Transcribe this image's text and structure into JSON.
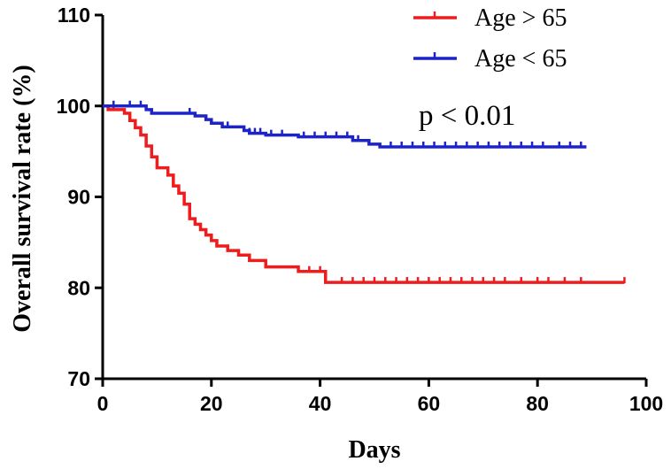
{
  "chart_data": {
    "type": "line",
    "subtype": "kaplan-meier",
    "xlabel": "Days",
    "ylabel": "Overall survival rate (%)",
    "xlim": [
      0,
      100
    ],
    "ylim": [
      70,
      110
    ],
    "xticks": [
      0,
      20,
      40,
      60,
      80,
      100
    ],
    "yticks": [
      70,
      80,
      90,
      100,
      110
    ],
    "grid": false,
    "legend_position": "top-right",
    "annotation": "p < 0.01",
    "series": [
      {
        "name": "Age > 65",
        "color": "#ee1c1c",
        "steps": [
          [
            0,
            100
          ],
          [
            1,
            99.6
          ],
          [
            4,
            99.2
          ],
          [
            5,
            98.4
          ],
          [
            6,
            97.6
          ],
          [
            7,
            96.8
          ],
          [
            8,
            95.6
          ],
          [
            9,
            94.4
          ],
          [
            10,
            93.2
          ],
          [
            12,
            92.4
          ],
          [
            13,
            91.2
          ],
          [
            14,
            90.4
          ],
          [
            15,
            89.2
          ],
          [
            16,
            87.6
          ],
          [
            17,
            87.0
          ],
          [
            18,
            86.4
          ],
          [
            19,
            85.8
          ],
          [
            20,
            85.2
          ],
          [
            21,
            84.6
          ],
          [
            23,
            84.1
          ],
          [
            25,
            83.6
          ],
          [
            27,
            83.0
          ],
          [
            30,
            82.3
          ],
          [
            36,
            81.8
          ],
          [
            41,
            80.6
          ],
          [
            96,
            80.6
          ]
        ],
        "censored": [
          [
            2,
            99.6
          ],
          [
            38,
            81.8
          ],
          [
            40,
            81.8
          ],
          [
            44,
            80.6
          ],
          [
            46,
            80.6
          ],
          [
            48,
            80.6
          ],
          [
            50,
            80.6
          ],
          [
            52,
            80.6
          ],
          [
            54,
            80.6
          ],
          [
            56,
            80.6
          ],
          [
            58,
            80.6
          ],
          [
            60,
            80.6
          ],
          [
            62,
            80.6
          ],
          [
            64,
            80.6
          ],
          [
            66,
            80.6
          ],
          [
            68,
            80.6
          ],
          [
            70,
            80.6
          ],
          [
            72,
            80.6
          ],
          [
            74,
            80.6
          ],
          [
            77,
            80.6
          ],
          [
            80,
            80.6
          ],
          [
            82,
            80.6
          ],
          [
            85,
            80.6
          ],
          [
            88,
            80.6
          ],
          [
            96,
            80.6
          ]
        ]
      },
      {
        "name": "Age < 65",
        "color": "#1c23c8",
        "steps": [
          [
            0,
            100
          ],
          [
            8,
            99.6
          ],
          [
            9,
            99.2
          ],
          [
            17,
            98.9
          ],
          [
            19,
            98.5
          ],
          [
            20,
            98.1
          ],
          [
            22,
            97.7
          ],
          [
            26,
            97.3
          ],
          [
            27,
            97.0
          ],
          [
            30,
            96.8
          ],
          [
            36,
            96.6
          ],
          [
            46,
            96.2
          ],
          [
            49,
            95.8
          ],
          [
            51,
            95.5
          ],
          [
            89,
            95.5
          ]
        ],
        "censored": [
          [
            2,
            100
          ],
          [
            5,
            100
          ],
          [
            7,
            100
          ],
          [
            16,
            99.2
          ],
          [
            23,
            97.7
          ],
          [
            27,
            97.0
          ],
          [
            28,
            97.0
          ],
          [
            29,
            97.0
          ],
          [
            31,
            96.8
          ],
          [
            33,
            96.8
          ],
          [
            37,
            96.6
          ],
          [
            39,
            96.6
          ],
          [
            41,
            96.6
          ],
          [
            43,
            96.6
          ],
          [
            45,
            96.6
          ],
          [
            47,
            96.2
          ],
          [
            53,
            95.5
          ],
          [
            55,
            95.5
          ],
          [
            57,
            95.5
          ],
          [
            59,
            95.5
          ],
          [
            61,
            95.5
          ],
          [
            63,
            95.5
          ],
          [
            65,
            95.5
          ],
          [
            67,
            95.5
          ],
          [
            69,
            95.5
          ],
          [
            71,
            95.5
          ],
          [
            73,
            95.5
          ],
          [
            75,
            95.5
          ],
          [
            77,
            95.5
          ],
          [
            79,
            95.5
          ],
          [
            81,
            95.5
          ],
          [
            84,
            95.5
          ],
          [
            86,
            95.5
          ],
          [
            88,
            95.5
          ]
        ]
      }
    ]
  }
}
